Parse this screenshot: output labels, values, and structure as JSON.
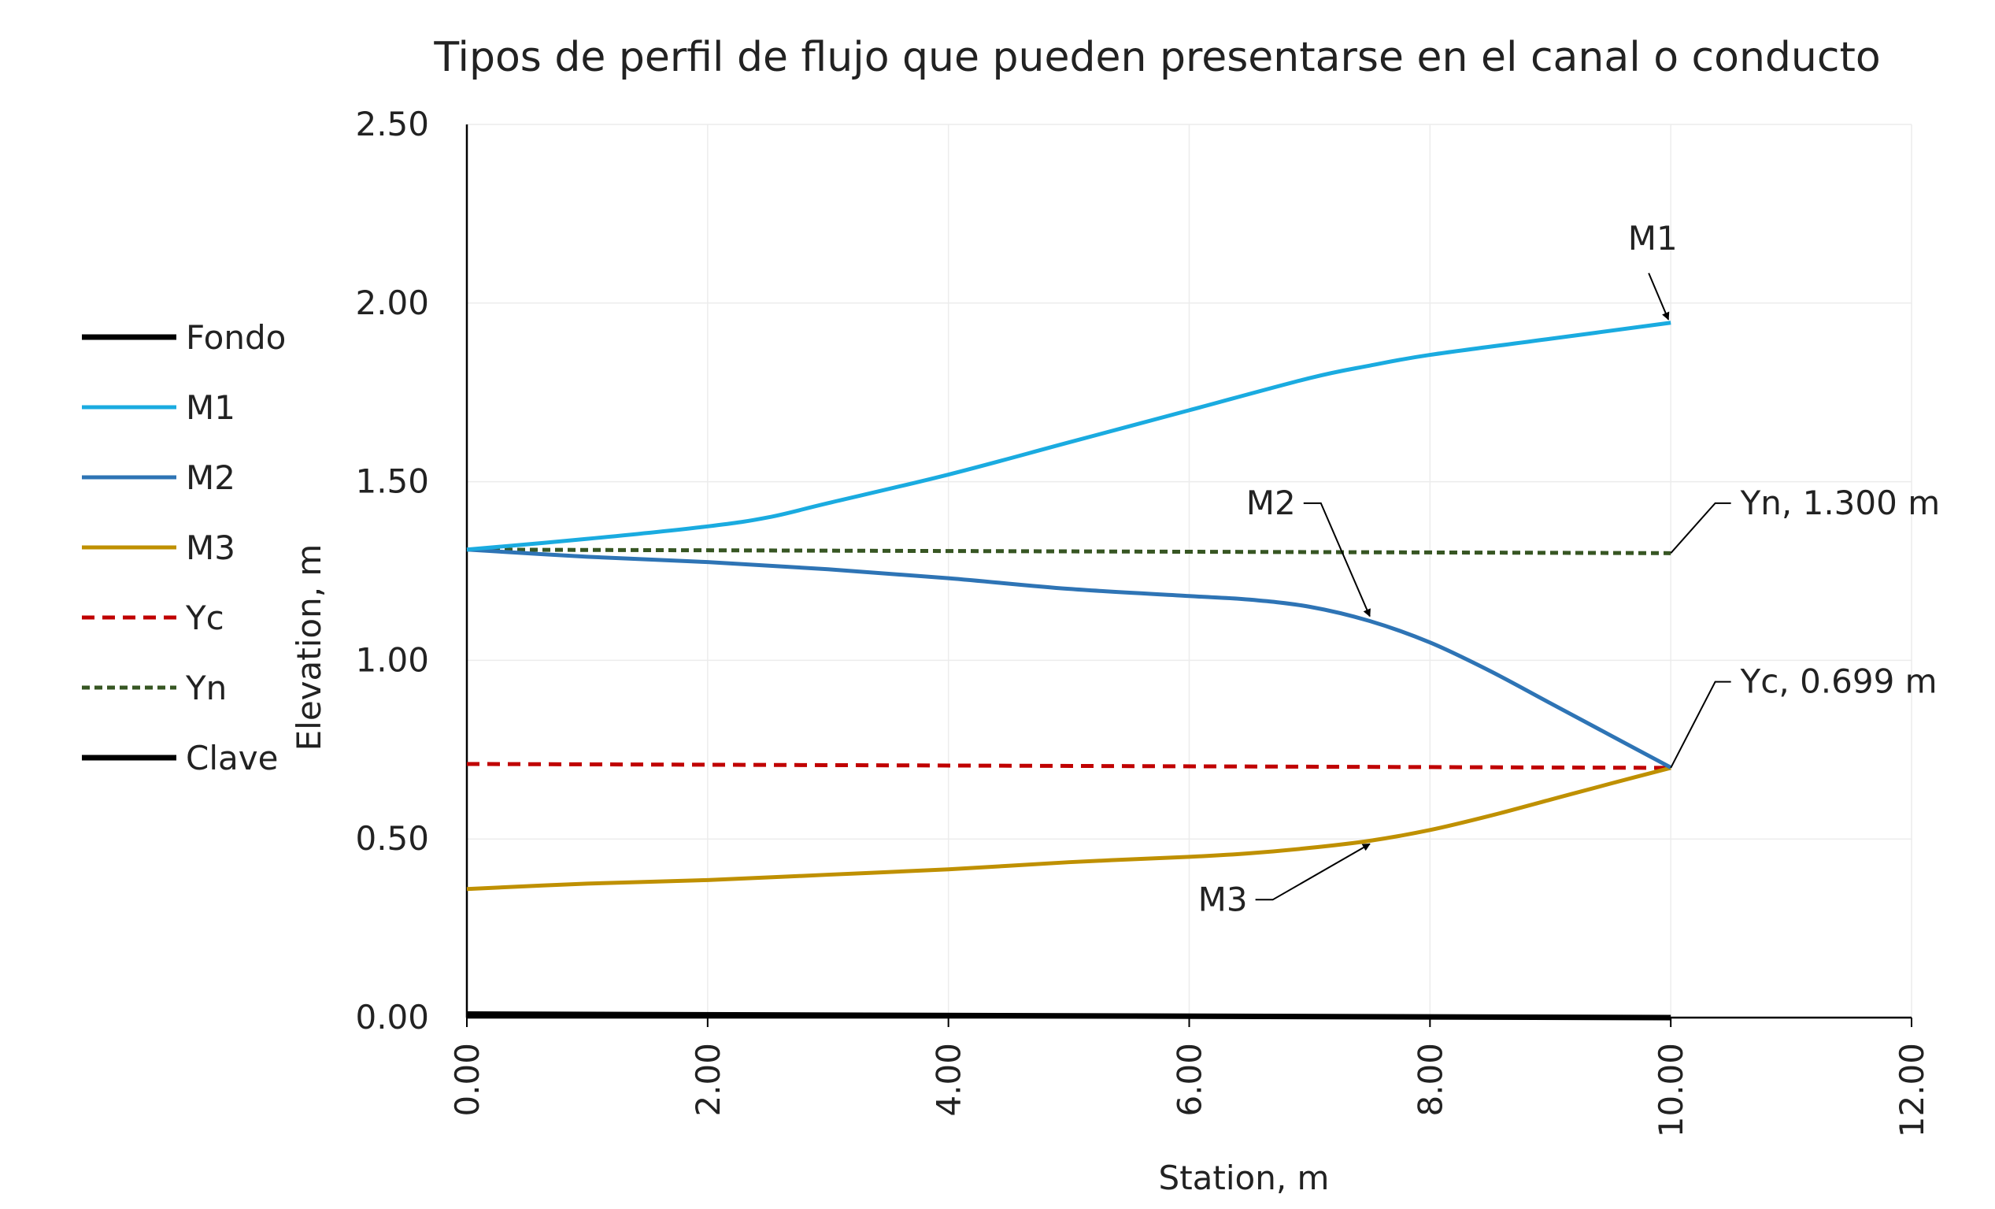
{
  "chart_data": {
    "type": "line",
    "title": "Tipos de perfil de flujo que pueden presentarse en el canal o conducto",
    "xlabel": "Station, m",
    "ylabel": "Elevation, m",
    "xlim": [
      0,
      12
    ],
    "ylim": [
      0,
      2.5
    ],
    "x_ticks": [
      "0.00",
      "2.00",
      "4.00",
      "6.00",
      "8.00",
      "10.00",
      "12.00"
    ],
    "y_ticks": [
      "0.00",
      "0.50",
      "1.00",
      "1.50",
      "2.00",
      "2.50"
    ],
    "grid": true,
    "legend_position": "left",
    "series": [
      {
        "name": "Fondo",
        "color": "#000000",
        "dash": "solid",
        "x": [
          0,
          10
        ],
        "y": [
          0.01,
          0.0
        ]
      },
      {
        "name": "M1",
        "color": "#1AABE0",
        "dash": "solid",
        "x": [
          0,
          1,
          2,
          2.5,
          3,
          4,
          5,
          6,
          7,
          7.5,
          8,
          9,
          10
        ],
        "y": [
          1.31,
          1.34,
          1.375,
          1.4,
          1.44,
          1.52,
          1.61,
          1.7,
          1.79,
          1.825,
          1.855,
          1.9,
          1.945
        ]
      },
      {
        "name": "M2",
        "color": "#2E74B5",
        "dash": "solid",
        "x": [
          0,
          1,
          2,
          3,
          4,
          5,
          6,
          6.5,
          7,
          7.5,
          8,
          8.5,
          9,
          9.5,
          10
        ],
        "y": [
          1.31,
          1.29,
          1.275,
          1.255,
          1.23,
          1.2,
          1.18,
          1.17,
          1.15,
          1.11,
          1.05,
          0.97,
          0.88,
          0.79,
          0.7
        ]
      },
      {
        "name": "M3",
        "color": "#BF9000",
        "dash": "solid",
        "x": [
          0,
          1,
          2,
          3,
          4,
          5,
          6,
          6.5,
          7,
          7.5,
          8,
          8.5,
          9,
          9.5,
          10
        ],
        "y": [
          0.36,
          0.375,
          0.385,
          0.4,
          0.415,
          0.435,
          0.45,
          0.46,
          0.475,
          0.495,
          0.525,
          0.565,
          0.61,
          0.655,
          0.699
        ]
      },
      {
        "name": "Yc",
        "color": "#C00000",
        "dash": "dashed",
        "x": [
          0,
          10
        ],
        "y": [
          0.71,
          0.699
        ]
      },
      {
        "name": "Yn",
        "color": "#375623",
        "dash": "dashed",
        "x": [
          0,
          10
        ],
        "y": [
          1.31,
          1.3
        ]
      },
      {
        "name": "Clave",
        "color": "#000000",
        "dash": "solid",
        "x": [],
        "y": []
      }
    ],
    "annotations": [
      {
        "text": "M1",
        "point": [
          10,
          1.945
        ],
        "label_at": [
          9.85,
          2.15
        ],
        "arrow": true
      },
      {
        "text": "M2",
        "point": [
          7.5,
          1.11
        ],
        "label_at": [
          6.95,
          1.44
        ],
        "arrow": true
      },
      {
        "text": "M3",
        "point": [
          7.5,
          0.495
        ],
        "label_at": [
          6.55,
          0.33
        ],
        "arrow": true
      },
      {
        "text": "Yn, 1.300 m",
        "point": [
          10,
          1.3
        ],
        "label_at": [
          10.5,
          1.44
        ],
        "arrow": false
      },
      {
        "text": "Yc, 0.699 m",
        "point": [
          10,
          0.699
        ],
        "label_at": [
          10.5,
          0.94
        ],
        "arrow": false
      }
    ]
  }
}
